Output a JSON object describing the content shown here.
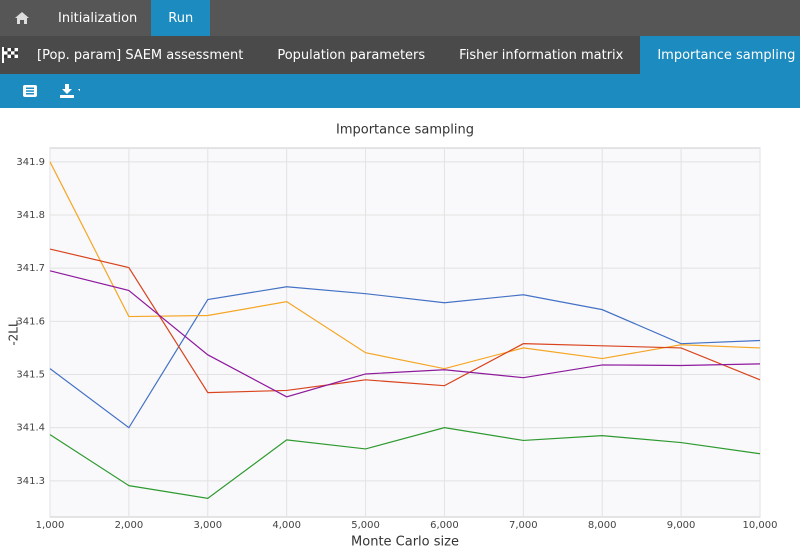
{
  "nav": {
    "top": [
      "Initialization",
      "Run"
    ],
    "tabs": [
      "[Pop. param] SAEM assessment",
      "Population parameters",
      "Fisher information matrix",
      "Importance sampling"
    ]
  },
  "chart_data": {
    "type": "line",
    "title": "Importance sampling",
    "x_label": "Monte Carlo size",
    "y_label": "-2LL",
    "x": [
      1000,
      2000,
      3000,
      4000,
      5000,
      6000,
      7000,
      8000,
      9000,
      10000
    ],
    "series": [
      {
        "color": "#4472c4",
        "values": [
          341.511,
          341.4,
          341.641,
          341.665,
          341.652,
          341.635,
          341.65,
          341.622,
          341.558,
          341.564
        ]
      },
      {
        "color": "#f5a623",
        "values": [
          341.9,
          341.609,
          341.611,
          341.637,
          341.541,
          341.511,
          341.55,
          341.53,
          341.556,
          341.55
        ]
      },
      {
        "color": "#d9441c",
        "values": [
          341.736,
          341.701,
          341.466,
          341.47,
          341.49,
          341.479,
          341.558,
          341.554,
          341.55,
          341.49
        ]
      },
      {
        "color": "#8e1a9c",
        "values": [
          341.695,
          341.658,
          341.537,
          341.458,
          341.501,
          341.509,
          341.494,
          341.518,
          341.517,
          341.52
        ]
      },
      {
        "color": "#2e9a2e",
        "values": [
          341.387,
          341.291,
          341.267,
          341.377,
          341.36,
          341.4,
          341.376,
          341.385,
          341.372,
          341.351
        ]
      }
    ],
    "xlim": [
      1000,
      10000
    ],
    "ylim": [
      341.232,
      341.926
    ],
    "xticks": [
      {
        "value": 1000,
        "label": "1,000"
      },
      {
        "value": 2000,
        "label": "2,000"
      },
      {
        "value": 3000,
        "label": "3,000"
      },
      {
        "value": 4000,
        "label": "4,000"
      },
      {
        "value": 5000,
        "label": "5,000"
      },
      {
        "value": 6000,
        "label": "6,000"
      },
      {
        "value": 7000,
        "label": "7,000"
      },
      {
        "value": 8000,
        "label": "8,000"
      },
      {
        "value": 9000,
        "label": "9,000"
      },
      {
        "value": 10000,
        "label": "10,000"
      }
    ],
    "yticks": [
      341.3,
      341.4,
      341.5,
      341.6,
      341.7,
      341.8,
      341.9
    ],
    "grid": true
  }
}
